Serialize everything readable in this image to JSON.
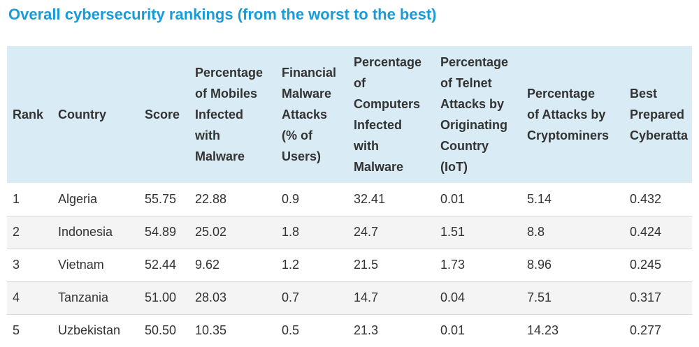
{
  "title": "Overall cybersecurity rankings (from the worst to the best)",
  "table": {
    "headers": [
      "Rank",
      "Country",
      "Score",
      "Percentage\nof Mobiles\nInfected\nwith\nMalware",
      "Financial\nMalware\nAttacks\n(% of\nUsers)",
      "Percentage\nof\nComputers\nInfected\nwith\nMalware",
      "Percentage\nof Telnet\nAttacks by\nOriginating\nCountry\n(IoT)",
      "Percentage\nof Attacks by\nCryptominers",
      "Best\nPrepared\nCyberatta"
    ],
    "rows": [
      [
        "1",
        "Algeria",
        "55.75",
        "22.88",
        "0.9",
        "32.41",
        "0.01",
        "5.14",
        "0.432"
      ],
      [
        "2",
        "Indonesia",
        "54.89",
        "25.02",
        "1.8",
        "24.7",
        "1.51",
        "8.8",
        "0.424"
      ],
      [
        "3",
        "Vietnam",
        "52.44",
        "9.62",
        "1.2",
        "21.5",
        "1.73",
        "8.96",
        "0.245"
      ],
      [
        "4",
        "Tanzania",
        "51.00",
        "28.03",
        "0.7",
        "14.7",
        "0.04",
        "7.51",
        "0.317"
      ],
      [
        "5",
        "Uzbekistan",
        "50.50",
        "10.35",
        "0.5",
        "21.3",
        "0.01",
        "14.23",
        "0.277"
      ]
    ]
  },
  "colors": {
    "title": "#1a9ad6",
    "header_bg": "#d9ecf6",
    "alt_row_bg": "#f4f4f4",
    "text": "#333333"
  }
}
